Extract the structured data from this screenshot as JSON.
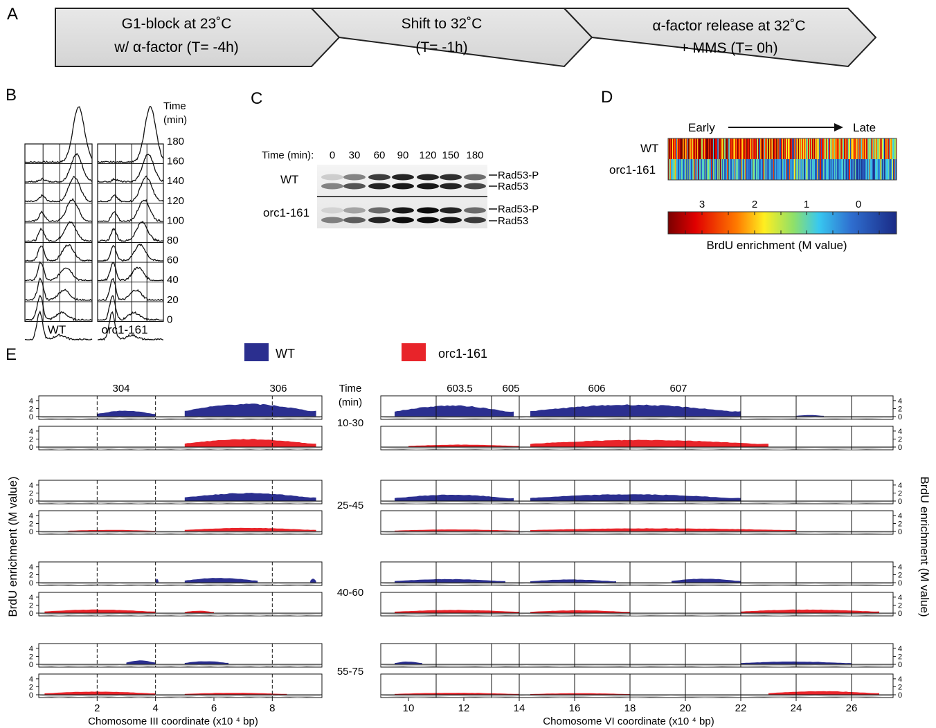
{
  "panels": {
    "A": {
      "letter": "A",
      "steps": [
        {
          "line1": "G1-block at 23˚C",
          "line2": "w/ α-factor  (T= -4h)"
        },
        {
          "line1": "Shift to 32˚C",
          "line2": "(T= -1h)"
        },
        {
          "line1": "α-factor release at 32˚C",
          "line2": "+ MMS  (T= 0h)"
        }
      ]
    },
    "B": {
      "letter": "B",
      "time_label": "Time",
      "time_unit": "(min)",
      "times": [
        "180",
        "160",
        "140",
        "120",
        "100",
        "80",
        "60",
        "40",
        "20",
        "0"
      ],
      "strains": [
        "WT",
        "orc1-161"
      ]
    },
    "C": {
      "letter": "C",
      "time_label": "Time (min):",
      "times": [
        "0",
        "30",
        "60",
        "90",
        "120",
        "150",
        "180"
      ],
      "strains": [
        "WT",
        "orc1-161"
      ],
      "band_labels": [
        "Rad53-P",
        "Rad53"
      ]
    },
    "D": {
      "letter": "D",
      "early": "Early",
      "late": "Late",
      "strains": [
        "WT",
        "orc1-161"
      ],
      "scale_ticks": [
        "3",
        "2",
        "1",
        "0"
      ],
      "scale_label": "BrdU enrichment (M value)",
      "colors": {
        "high": "#a00000",
        "mid": "#ffff40",
        "low": "#1a2f8f"
      }
    },
    "E": {
      "letter": "E",
      "legend": [
        {
          "name": "WT",
          "color": "#2b2f8f"
        },
        {
          "name": "orc1-161",
          "color": "#e8242a"
        }
      ],
      "time_header": "Time",
      "time_unit": "(min)",
      "windows": [
        "10-30",
        "25-45",
        "40-60",
        "55-75"
      ],
      "ylabel": "BrdU enrichment (M value)",
      "y_ticks": [
        "4",
        "2",
        "0"
      ],
      "left": {
        "origin_labels": [
          "304",
          "306"
        ],
        "x_ticks": [
          "2",
          "4",
          "6",
          "8"
        ],
        "xlabel": "Chomosome III coordinate (x10 ⁴ bp)"
      },
      "right": {
        "origin_labels": [
          "603.5",
          "605",
          "606",
          "607"
        ],
        "x_ticks": [
          "10",
          "12",
          "14",
          "16",
          "18",
          "20",
          "22",
          "24",
          "26"
        ],
        "xlabel": "Chomosome VI coordinate (x10 ⁴ bp)"
      },
      "colors": {
        "wt": "#2b2f8f",
        "orc": "#e8242a",
        "below": "#c8c8c8"
      }
    }
  }
}
